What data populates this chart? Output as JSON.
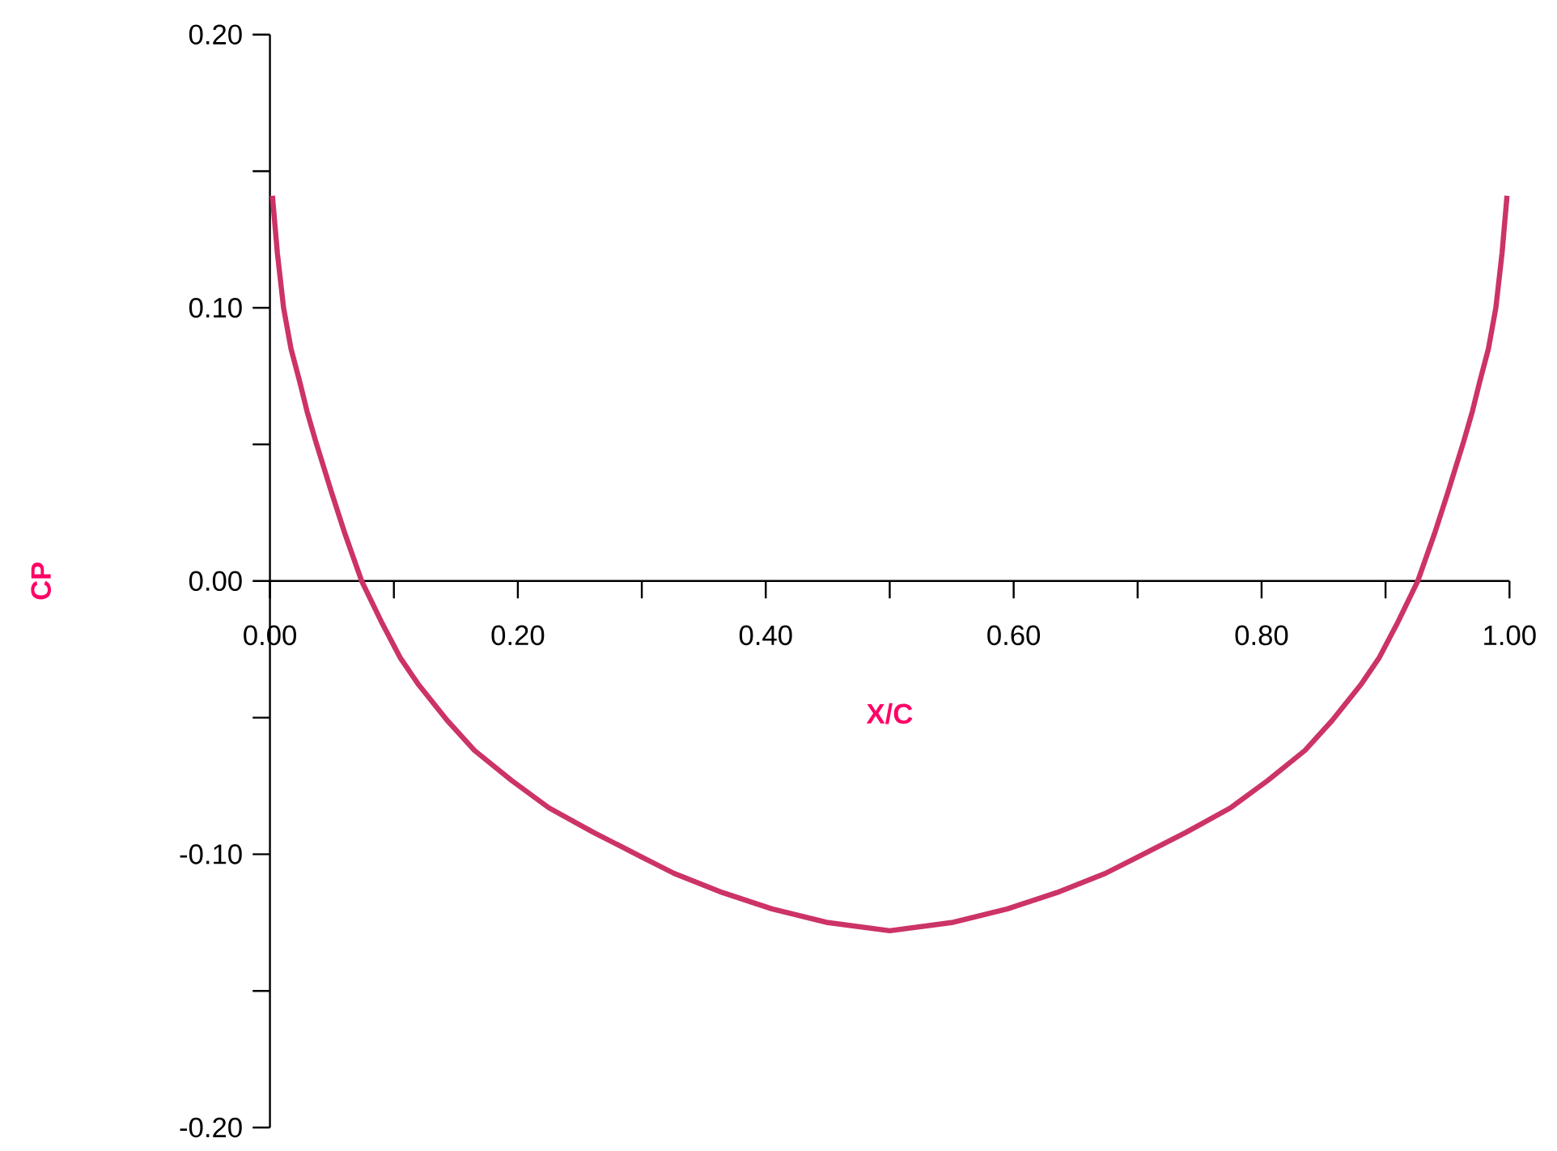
{
  "chart_data": {
    "type": "line",
    "xlabel": "X/C",
    "ylabel": "CP",
    "xlim": [
      0,
      1
    ],
    "ylim": [
      -0.2,
      0.2
    ],
    "xticks": [
      {
        "value": 0,
        "label": "0.00"
      },
      {
        "value": 0.1,
        "label": null
      },
      {
        "value": 0.2,
        "label": "0.20"
      },
      {
        "value": 0.3,
        "label": null
      },
      {
        "value": 0.4,
        "label": "0.40"
      },
      {
        "value": 0.5,
        "label": null
      },
      {
        "value": 0.6,
        "label": "0.60"
      },
      {
        "value": 0.7,
        "label": null
      },
      {
        "value": 0.8,
        "label": "0.80"
      },
      {
        "value": 0.9,
        "label": null
      },
      {
        "value": 1,
        "label": "1.00"
      }
    ],
    "yticks": [
      {
        "value": -0.2,
        "label": "-0.20"
      },
      {
        "value": -0.15,
        "label": null
      },
      {
        "value": -0.1,
        "label": "-0.10"
      },
      {
        "value": -0.05,
        "label": null
      },
      {
        "value": 0,
        "label": "0.00"
      },
      {
        "value": 0.05,
        "label": null
      },
      {
        "value": 0.1,
        "label": "0.10"
      },
      {
        "value": 0.15,
        "label": null
      },
      {
        "value": 0.2,
        "label": "0.20"
      }
    ],
    "series": [
      {
        "color": "#cc3366",
        "line_style": "solid",
        "x": [
          0.002,
          0.006,
          0.011,
          0.017,
          0.024,
          0.03,
          0.037,
          0.05,
          0.06,
          0.074,
          0.09,
          0.105,
          0.12,
          0.143,
          0.165,
          0.195,
          0.225,
          0.261,
          0.3,
          0.326,
          0.365,
          0.405,
          0.45,
          0.5,
          0.55,
          0.595,
          0.635,
          0.674,
          0.7,
          0.739,
          0.775,
          0.805,
          0.835,
          0.857,
          0.88,
          0.895,
          0.91,
          0.926,
          0.94,
          0.95,
          0.963,
          0.97,
          0.976,
          0.983,
          0.989,
          0.994,
          0.998
        ],
        "values": [
          0.141,
          0.12,
          0.1,
          0.085,
          0.073,
          0.062,
          0.051,
          0.032,
          0.018,
          0,
          -0.015,
          -0.028,
          -0.038,
          -0.051,
          -0.062,
          -0.073,
          -0.083,
          -0.092,
          -0.101,
          -0.107,
          -0.114,
          -0.12,
          -0.125,
          -0.128,
          -0.125,
          -0.12,
          -0.114,
          -0.107,
          -0.101,
          -0.092,
          -0.083,
          -0.073,
          -0.062,
          -0.051,
          -0.038,
          -0.028,
          -0.015,
          0,
          0.018,
          0.032,
          0.051,
          0.062,
          0.073,
          0.085,
          0.1,
          0.12,
          0.141
        ]
      }
    ]
  }
}
